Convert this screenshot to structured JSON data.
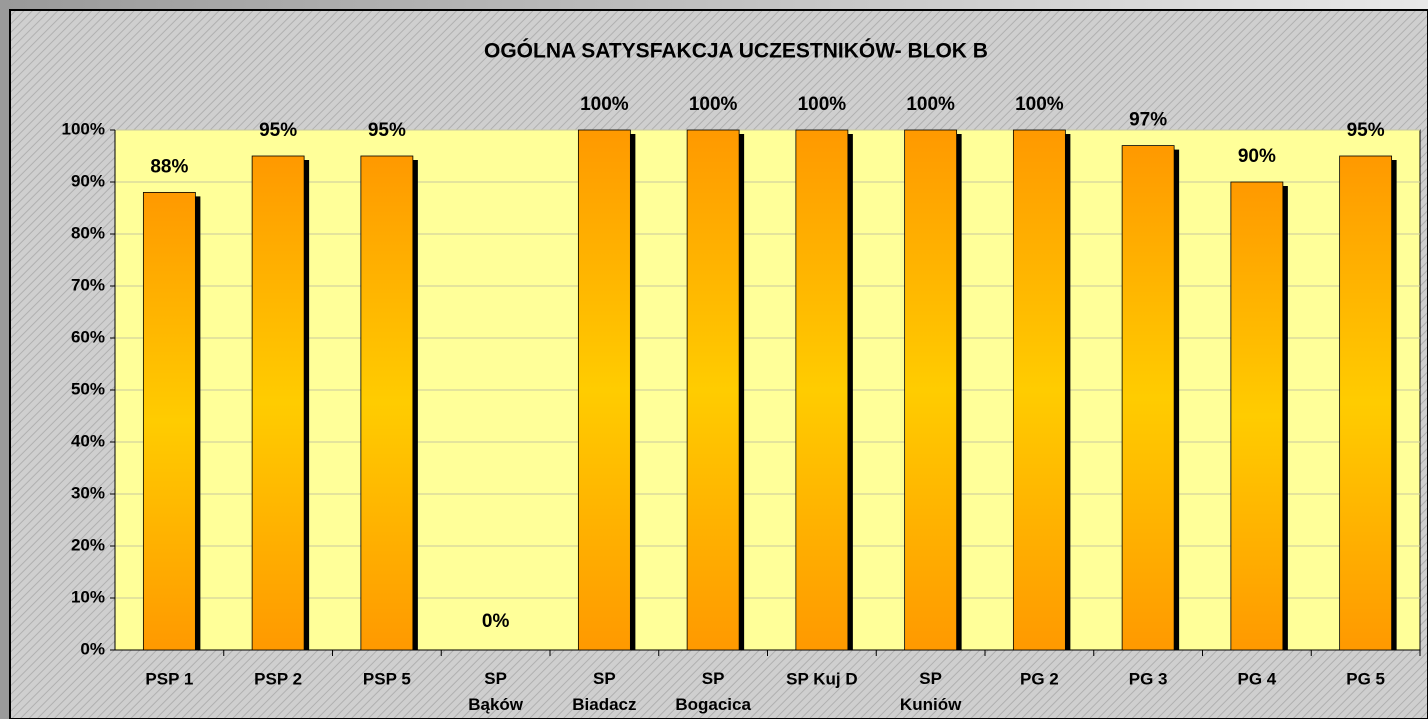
{
  "chart_data": {
    "type": "bar",
    "title": "OGÓLNA SATYSFAKCJA UCZESTNIKÓW- BLOK B",
    "categories": [
      "PSP 1",
      "PSP 2",
      "PSP 5",
      "SP Bąków",
      "SP Biadacz",
      "SP Bogacica",
      "SP Kuj D",
      "SP Kuniów",
      "PG 2",
      "PG 3",
      "PG 4",
      "PG 5"
    ],
    "values": [
      88,
      95,
      95,
      0,
      100,
      100,
      100,
      100,
      100,
      97,
      90,
      95
    ],
    "value_labels": [
      "88%",
      "95%",
      "95%",
      "0%",
      "100%",
      "100%",
      "100%",
      "100%",
      "100%",
      "97%",
      "90%",
      "95%"
    ],
    "color": "#ff9900",
    "ylim": [
      0,
      100
    ],
    "yticks": [
      {
        "value": 0,
        "label": "0%"
      },
      {
        "value": 10,
        "label": "10%"
      },
      {
        "value": 20,
        "label": "20%"
      },
      {
        "value": 30,
        "label": "30%"
      },
      {
        "value": 40,
        "label": "40%"
      },
      {
        "value": 50,
        "label": "50%"
      },
      {
        "value": 60,
        "label": "60%"
      },
      {
        "value": 70,
        "label": "70%"
      },
      {
        "value": 80,
        "label": "80%"
      },
      {
        "value": 90,
        "label": "90%"
      },
      {
        "value": 100,
        "label": "100%"
      }
    ],
    "grid": true
  }
}
